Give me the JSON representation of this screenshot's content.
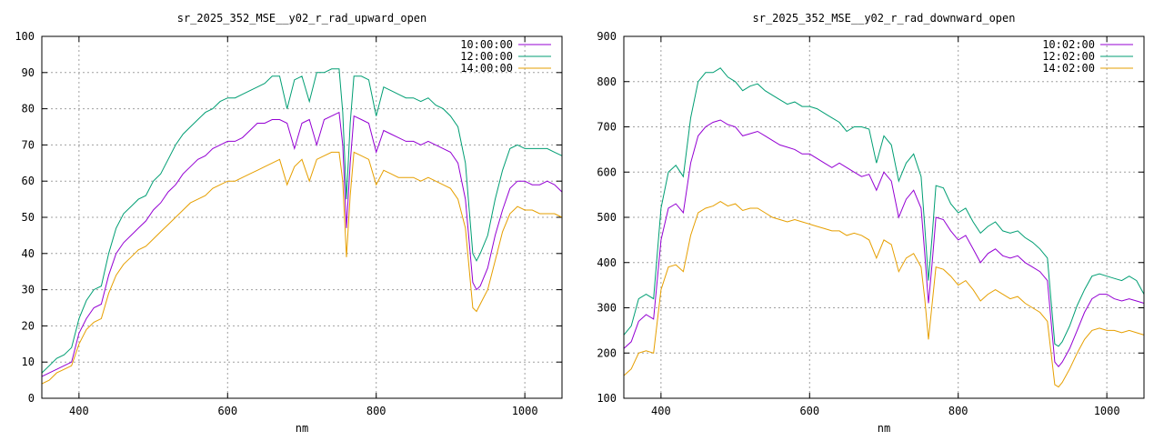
{
  "chart_data": [
    {
      "type": "line",
      "title": "sr_2025_352_MSE__y02_r_rad_upward_open",
      "xlabel": "nm",
      "ylabel": "",
      "xlim": [
        350,
        1050
      ],
      "ylim": [
        0,
        100
      ],
      "xticks": [
        400,
        600,
        800,
        1000
      ],
      "yticks": [
        0,
        10,
        20,
        30,
        40,
        50,
        60,
        70,
        80,
        90,
        100
      ],
      "grid": true,
      "legend": "top-right",
      "x": [
        350,
        360,
        370,
        380,
        390,
        400,
        410,
        420,
        430,
        440,
        450,
        460,
        470,
        480,
        490,
        500,
        510,
        520,
        530,
        540,
        550,
        560,
        570,
        580,
        590,
        600,
        610,
        620,
        630,
        640,
        650,
        660,
        670,
        680,
        690,
        700,
        710,
        720,
        730,
        740,
        750,
        755,
        760,
        765,
        770,
        780,
        790,
        800,
        810,
        820,
        830,
        840,
        850,
        860,
        870,
        880,
        890,
        900,
        910,
        920,
        930,
        935,
        940,
        950,
        960,
        970,
        980,
        990,
        1000,
        1010,
        1020,
        1030,
        1040,
        1050
      ],
      "series": [
        {
          "name": "10:00:00",
          "color": "#9400d3",
          "values": [
            6,
            7,
            8,
            9,
            10,
            18,
            22,
            25,
            26,
            34,
            40,
            43,
            45,
            47,
            49,
            52,
            54,
            57,
            59,
            62,
            64,
            66,
            67,
            69,
            70,
            71,
            71,
            72,
            74,
            76,
            76,
            77,
            77,
            76,
            69,
            76,
            77,
            70,
            77,
            78,
            79,
            70,
            47,
            65,
            78,
            77,
            76,
            68,
            74,
            73,
            72,
            71,
            71,
            70,
            71,
            70,
            69,
            68,
            65,
            55,
            32,
            30,
            31,
            36,
            45,
            52,
            58,
            60,
            60,
            59,
            59,
            60,
            59,
            57
          ]
        },
        {
          "name": "12:00:00",
          "color": "#009e73",
          "values": [
            7,
            9,
            11,
            12,
            14,
            22,
            27,
            30,
            31,
            40,
            47,
            51,
            53,
            55,
            56,
            60,
            62,
            66,
            70,
            73,
            75,
            77,
            79,
            80,
            82,
            83,
            83,
            84,
            85,
            86,
            87,
            89,
            89,
            80,
            88,
            89,
            82,
            90,
            90,
            91,
            91,
            79,
            55,
            76,
            89,
            89,
            88,
            78,
            86,
            85,
            84,
            83,
            83,
            82,
            83,
            81,
            80,
            78,
            75,
            65,
            40,
            38,
            40,
            45,
            55,
            63,
            69,
            70,
            69,
            69,
            69,
            69,
            68,
            67
          ]
        },
        {
          "name": "14:00:00",
          "color": "#e69f00",
          "values": [
            4,
            5,
            7,
            8,
            9,
            15,
            19,
            21,
            22,
            29,
            34,
            37,
            39,
            41,
            42,
            44,
            46,
            48,
            50,
            52,
            54,
            55,
            56,
            58,
            59,
            60,
            60,
            61,
            62,
            63,
            64,
            65,
            66,
            59,
            64,
            66,
            60,
            66,
            67,
            68,
            68,
            60,
            39,
            56,
            68,
            67,
            66,
            59,
            63,
            62,
            61,
            61,
            61,
            60,
            61,
            60,
            59,
            58,
            55,
            47,
            25,
            24,
            26,
            30,
            38,
            46,
            51,
            53,
            52,
            52,
            51,
            51,
            51,
            50
          ]
        }
      ]
    },
    {
      "type": "line",
      "title": "sr_2025_352_MSE__y02_r_rad_downward_open",
      "xlabel": "nm",
      "ylabel": "",
      "xlim": [
        350,
        1050
      ],
      "ylim": [
        100,
        900
      ],
      "xticks": [
        400,
        600,
        800,
        1000
      ],
      "yticks": [
        100,
        200,
        300,
        400,
        500,
        600,
        700,
        800,
        900
      ],
      "grid": true,
      "legend": "top-right",
      "x": [
        350,
        360,
        370,
        380,
        390,
        400,
        410,
        420,
        430,
        440,
        450,
        460,
        470,
        480,
        490,
        500,
        510,
        520,
        530,
        540,
        550,
        560,
        570,
        580,
        590,
        600,
        610,
        620,
        630,
        640,
        650,
        660,
        670,
        680,
        690,
        700,
        710,
        720,
        730,
        740,
        750,
        755,
        760,
        765,
        770,
        780,
        790,
        800,
        810,
        820,
        830,
        840,
        850,
        860,
        870,
        880,
        890,
        900,
        910,
        920,
        930,
        935,
        940,
        950,
        960,
        970,
        980,
        990,
        1000,
        1010,
        1020,
        1030,
        1040,
        1050
      ],
      "series": [
        {
          "name": "10:02:00",
          "color": "#9400d3",
          "values": [
            210,
            225,
            270,
            285,
            275,
            450,
            520,
            530,
            510,
            620,
            680,
            700,
            710,
            715,
            705,
            700,
            680,
            685,
            690,
            680,
            670,
            660,
            655,
            650,
            640,
            640,
            630,
            620,
            610,
            620,
            610,
            600,
            590,
            595,
            560,
            600,
            580,
            500,
            540,
            560,
            520,
            420,
            310,
            400,
            500,
            495,
            470,
            450,
            460,
            430,
            400,
            420,
            430,
            415,
            410,
            415,
            400,
            390,
            380,
            360,
            180,
            170,
            180,
            210,
            250,
            290,
            320,
            330,
            330,
            320,
            315,
            320,
            315,
            310
          ]
        },
        {
          "name": "12:02:00",
          "color": "#009e73",
          "values": [
            240,
            260,
            320,
            330,
            320,
            520,
            600,
            615,
            590,
            720,
            800,
            820,
            820,
            830,
            810,
            800,
            780,
            790,
            795,
            780,
            770,
            760,
            750,
            755,
            745,
            745,
            740,
            730,
            720,
            710,
            690,
            700,
            700,
            695,
            620,
            680,
            660,
            580,
            620,
            640,
            590,
            480,
            360,
            460,
            570,
            565,
            530,
            510,
            520,
            490,
            465,
            480,
            490,
            470,
            465,
            470,
            455,
            445,
            430,
            410,
            220,
            215,
            225,
            260,
            305,
            340,
            370,
            375,
            370,
            365,
            360,
            370,
            360,
            330
          ]
        },
        {
          "name": "14:02:00",
          "color": "#e69f00",
          "values": [
            150,
            165,
            200,
            205,
            200,
            340,
            390,
            395,
            380,
            460,
            510,
            520,
            525,
            535,
            525,
            530,
            515,
            520,
            520,
            510,
            500,
            495,
            490,
            495,
            490,
            485,
            480,
            475,
            470,
            470,
            460,
            465,
            460,
            450,
            410,
            450,
            440,
            380,
            410,
            420,
            390,
            320,
            230,
            310,
            390,
            385,
            370,
            350,
            360,
            340,
            315,
            330,
            340,
            330,
            320,
            325,
            310,
            300,
            290,
            270,
            130,
            125,
            135,
            165,
            200,
            230,
            250,
            255,
            250,
            250,
            245,
            250,
            245,
            240
          ]
        }
      ]
    }
  ]
}
